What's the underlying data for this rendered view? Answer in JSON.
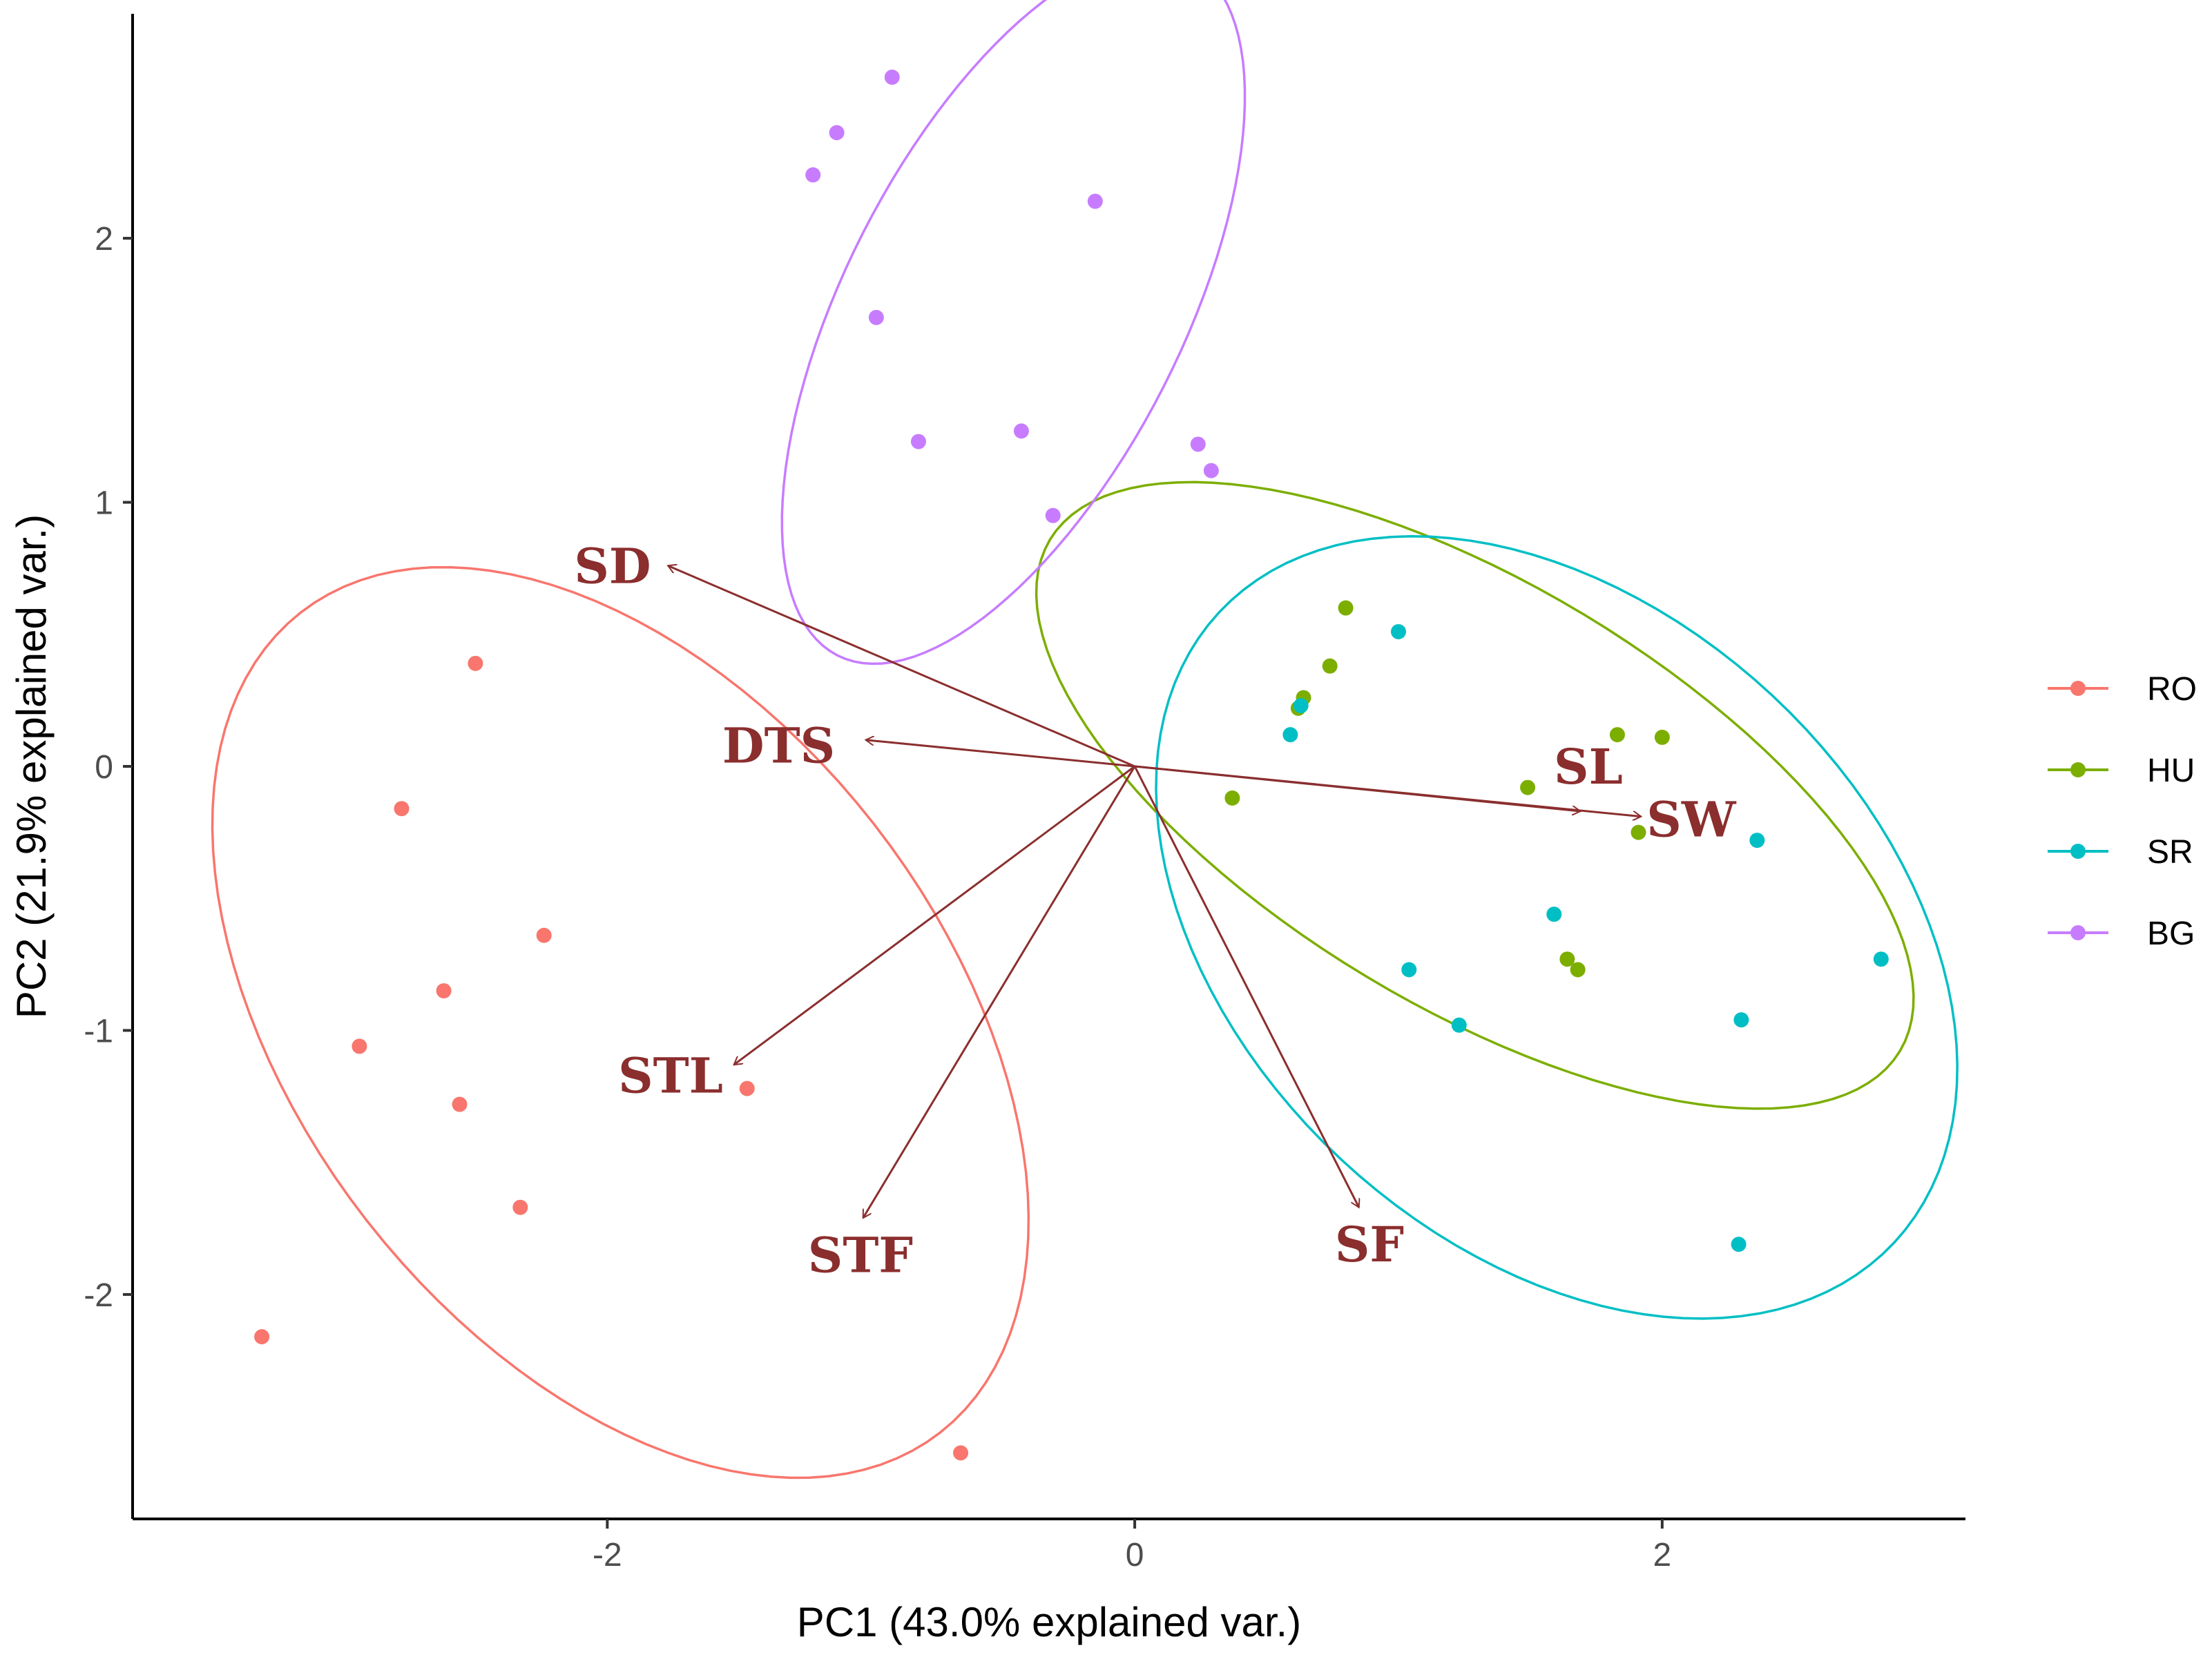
{
  "chart_data": {
    "type": "scatter",
    "subtype": "pca-biplot",
    "title": "",
    "xlabel": "PC1 (43.0% explained var.)",
    "ylabel": "PC2 (21.9% explained var.)",
    "xlim": [
      -3.8,
      3.15
    ],
    "ylim": [
      -2.85,
      2.85
    ],
    "xticks": [
      {
        "value": -2,
        "label": "-2"
      },
      {
        "value": 0,
        "label": "0"
      },
      {
        "value": 2,
        "label": "2"
      }
    ],
    "yticks": [
      {
        "value": -2,
        "label": "-2"
      },
      {
        "value": -1,
        "label": "-1"
      },
      {
        "value": 0,
        "label": "0"
      },
      {
        "value": 1,
        "label": "1"
      },
      {
        "value": 2,
        "label": "2"
      }
    ],
    "grid": false,
    "legend_position": "right",
    "series": [
      {
        "name": "RO",
        "color": "#F8766D",
        "points": [
          [
            -2.5,
            0.39
          ],
          [
            -2.78,
            -0.16
          ],
          [
            -2.24,
            -0.64
          ],
          [
            -2.62,
            -0.85
          ],
          [
            -2.94,
            -1.06
          ],
          [
            -2.56,
            -1.28
          ],
          [
            -1.47,
            -1.22
          ],
          [
            -2.33,
            -1.67
          ],
          [
            -3.31,
            -2.16
          ],
          [
            -0.66,
            -2.6
          ]
        ],
        "ellipse": {
          "center": [
            -1.95,
            -0.97
          ],
          "rx": 1.97,
          "ry": 1.22,
          "angle_deg": -52
        }
      },
      {
        "name": "HU",
        "color": "#7CAE00",
        "points": [
          [
            0.8,
            0.6
          ],
          [
            0.74,
            0.38
          ],
          [
            0.64,
            0.26
          ],
          [
            0.62,
            0.22
          ],
          [
            0.37,
            -0.12
          ],
          [
            1.83,
            0.12
          ],
          [
            2.0,
            0.11
          ],
          [
            1.49,
            -0.08
          ],
          [
            1.91,
            -0.25
          ],
          [
            1.64,
            -0.73
          ],
          [
            1.68,
            -0.77
          ]
        ],
        "ellipse": {
          "center": [
            1.29,
            -0.11
          ],
          "rx": 1.88,
          "ry": 0.8,
          "angle_deg": -31
        }
      },
      {
        "name": "SR",
        "color": "#00BFC4",
        "points": [
          [
            1.0,
            0.51
          ],
          [
            0.59,
            0.12
          ],
          [
            0.63,
            0.23
          ],
          [
            2.36,
            -0.28
          ],
          [
            1.59,
            -0.56
          ],
          [
            1.04,
            -0.77
          ],
          [
            2.83,
            -0.73
          ],
          [
            1.23,
            -0.98
          ],
          [
            2.3,
            -0.96
          ],
          [
            2.29,
            -1.81
          ]
        ],
        "ellipse": {
          "center": [
            1.6,
            -0.61
          ],
          "rx": 1.75,
          "ry": 1.2,
          "angle_deg": -43
        }
      },
      {
        "name": "BG",
        "color": "#C77CFF",
        "points": [
          [
            -0.92,
            2.61
          ],
          [
            -1.13,
            2.4
          ],
          [
            -1.22,
            2.24
          ],
          [
            -0.15,
            2.14
          ],
          [
            -0.98,
            1.7
          ],
          [
            -0.82,
            1.23
          ],
          [
            -0.43,
            1.27
          ],
          [
            0.24,
            1.22
          ],
          [
            0.29,
            1.12
          ],
          [
            -0.31,
            0.95
          ]
        ],
        "ellipse": {
          "center": [
            -0.46,
            1.73
          ],
          "rx": 1.47,
          "ry": 0.64,
          "angle_deg": 63
        }
      }
    ],
    "loadings": [
      {
        "name": "SD",
        "x": -1.77,
        "y": 0.76,
        "label_x": -1.98,
        "label_y": 0.76
      },
      {
        "name": "DTS",
        "x": -1.02,
        "y": 0.1,
        "label_x": -1.35,
        "label_y": 0.08
      },
      {
        "name": "STL",
        "x": -1.52,
        "y": -1.13,
        "label_x": -1.76,
        "label_y": -1.17
      },
      {
        "name": "STF",
        "x": -1.03,
        "y": -1.71,
        "label_x": -1.04,
        "label_y": -1.85
      },
      {
        "name": "SF",
        "x": 0.85,
        "y": -1.67,
        "label_x": 0.89,
        "label_y": -1.81
      },
      {
        "name": "SL",
        "x": 1.69,
        "y": -0.17,
        "label_x": 1.72,
        "label_y": 0.0
      },
      {
        "name": "SW",
        "x": 1.92,
        "y": -0.19,
        "label_x": 2.11,
        "label_y": -0.2
      }
    ]
  }
}
